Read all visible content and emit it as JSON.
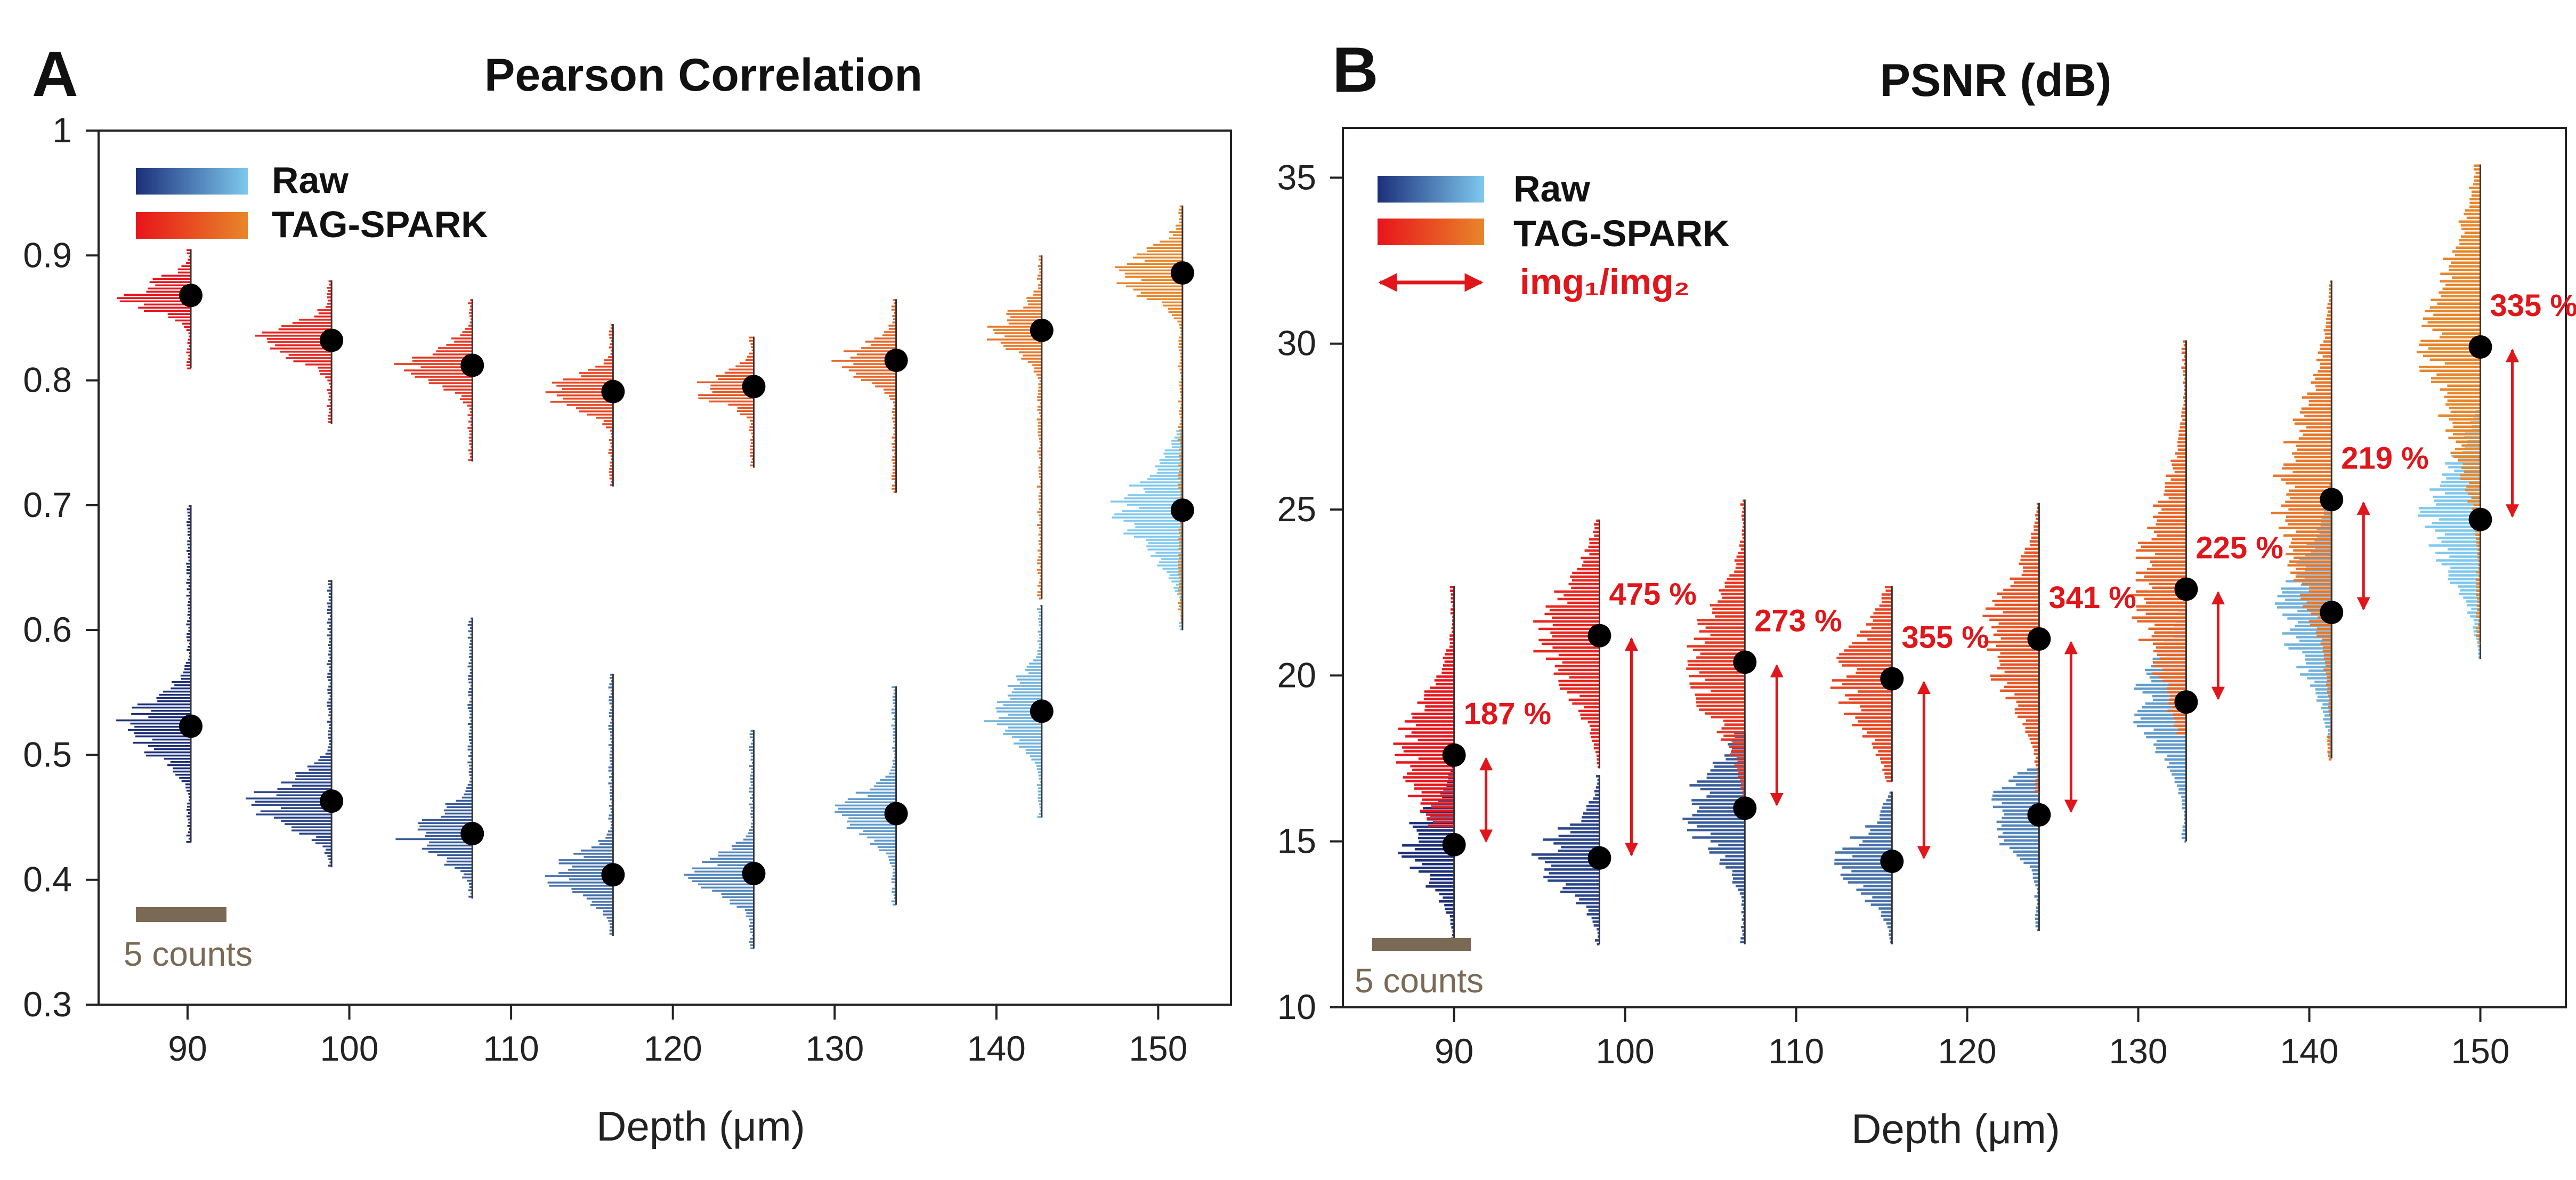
{
  "colors": {
    "raw_dark": "#1c2f7a",
    "raw_light": "#7ec8ee",
    "tag_red": "#e8141b",
    "tag_orange": "#e8862a",
    "arrow_red": "#e0161b",
    "scale_bar": "#7a6a55",
    "marker": "#000000"
  },
  "scale_bar_label": "5 counts",
  "chart_data": [
    {
      "panel_letter": "A",
      "type": "violin-histogram",
      "title": "Pearson Correlation",
      "xlabel": "Depth (μm)",
      "ylabel": "",
      "x_ticks": [
        90,
        100,
        110,
        120,
        130,
        140,
        150
      ],
      "y_ticks": [
        "0.3",
        "0.4",
        "0.5",
        "0.6",
        "0.7",
        "0.8",
        "0.9",
        "1"
      ],
      "xlim": [
        84.5,
        154.5
      ],
      "ylim": [
        0.3,
        1.0
      ],
      "legend": {
        "position": "top-left",
        "entries": [
          "Raw",
          "TAG-SPARK"
        ]
      },
      "series": [
        {
          "name": "Raw",
          "depths": [
            90.2,
            98.9,
            107.6,
            116.3,
            125.0,
            133.8,
            142.8,
            151.5
          ],
          "means": [
            0.523,
            0.463,
            0.437,
            0.404,
            0.405,
            0.453,
            0.535,
            0.696
          ],
          "range_low": [
            0.43,
            0.41,
            0.385,
            0.355,
            0.345,
            0.38,
            0.45,
            0.6
          ],
          "range_high": [
            0.7,
            0.64,
            0.61,
            0.565,
            0.52,
            0.555,
            0.62,
            0.76
          ],
          "spread": [
            0.022,
            0.018,
            0.017,
            0.016,
            0.016,
            0.018,
            0.022,
            0.03
          ]
        },
        {
          "name": "TAG-SPARK",
          "depths": [
            90.2,
            98.9,
            107.6,
            116.3,
            125.0,
            133.8,
            142.8,
            151.5
          ],
          "means": [
            0.868,
            0.832,
            0.812,
            0.791,
            0.795,
            0.816,
            0.84,
            0.886
          ],
          "range_low": [
            0.81,
            0.765,
            0.735,
            0.715,
            0.73,
            0.71,
            0.625,
            0.605
          ],
          "range_high": [
            0.905,
            0.88,
            0.865,
            0.845,
            0.835,
            0.865,
            0.9,
            0.94
          ],
          "spread": [
            0.012,
            0.013,
            0.014,
            0.013,
            0.012,
            0.014,
            0.016,
            0.018
          ]
        }
      ]
    },
    {
      "panel_letter": "B",
      "type": "violin-histogram",
      "title": "PSNR (dB)",
      "xlabel": "Depth (μm)",
      "ylabel": "",
      "x_ticks": [
        90,
        100,
        110,
        120,
        130,
        140,
        150
      ],
      "y_ticks": [
        "10",
        "15",
        "20",
        "25",
        "30",
        "35"
      ],
      "xlim": [
        83.5,
        155.0
      ],
      "ylim": [
        10,
        36.5
      ],
      "legend": {
        "position": "top-left",
        "entries": [
          "Raw",
          "TAG-SPARK",
          "img₁/img₂"
        ]
      },
      "series": [
        {
          "name": "Raw",
          "depths": [
            90.0,
            98.5,
            107.0,
            115.6,
            124.2,
            132.8,
            141.3,
            150.0
          ],
          "means": [
            14.9,
            14.5,
            16.0,
            14.4,
            15.8,
            19.2,
            21.9,
            24.7
          ],
          "range_low": [
            11.9,
            11.9,
            11.9,
            11.9,
            12.3,
            15.0,
            17.5,
            20.5
          ],
          "range_high": [
            17.5,
            17.0,
            18.3,
            16.5,
            17.2,
            22.0,
            25.8,
            28.0
          ],
          "spread": [
            1.0,
            0.9,
            1.2,
            0.9,
            0.9,
            1.4,
            1.6,
            1.6
          ]
        },
        {
          "name": "TAG-SPARK",
          "depths": [
            90.0,
            98.5,
            107.0,
            115.6,
            124.2,
            132.8,
            141.3,
            150.0
          ],
          "means": [
            17.6,
            21.2,
            20.4,
            19.9,
            21.1,
            22.6,
            25.3,
            29.9
          ],
          "range_low": [
            15.5,
            17.2,
            16.3,
            16.8,
            16.5,
            18.2,
            17.5,
            21.0
          ],
          "range_high": [
            22.7,
            24.7,
            25.3,
            22.7,
            25.2,
            30.1,
            31.9,
            35.4
          ],
          "spread": [
            1.6,
            1.5,
            1.6,
            1.4,
            1.6,
            2.4,
            2.6,
            2.6
          ]
        }
      ],
      "ratio_labels": [
        "187 %",
        "475 %",
        "273 %",
        "355 %",
        "341 %",
        "225 %",
        "219 %",
        "335 %"
      ]
    }
  ]
}
